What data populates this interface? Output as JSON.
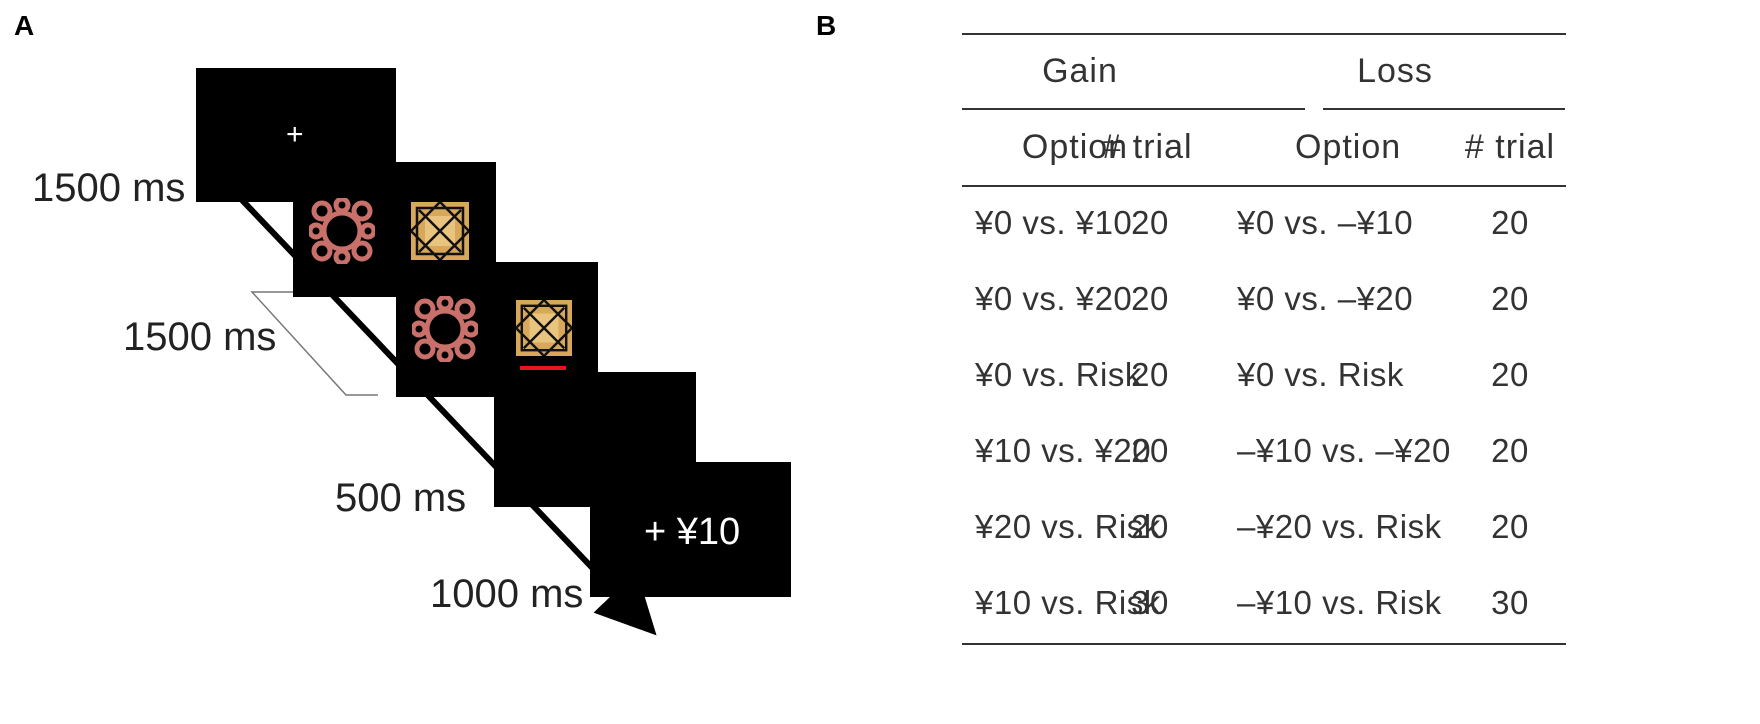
{
  "panel_a": {
    "label": "A",
    "timings": [
      "1500 ms",
      "1500 ms",
      "500 ms",
      "1000 ms"
    ],
    "fixation": "+",
    "feedback": "+ ¥10",
    "colors": {
      "screen": "#000000",
      "choice_marker": "#e8141c",
      "stim_left": "#c9706a",
      "stim_right": "#d8a85a"
    }
  },
  "panel_b": {
    "label": "B",
    "groups": [
      "Gain",
      "Loss"
    ],
    "columns": [
      "Option",
      "# trial",
      "Option",
      "# trial"
    ],
    "rows": [
      [
        "¥0 vs. ¥10",
        "20",
        "¥0 vs. –¥10",
        "20"
      ],
      [
        "¥0 vs. ¥20",
        "20",
        "¥0 vs. –¥20",
        "20"
      ],
      [
        "¥0 vs. Risk",
        "20",
        "¥0 vs. Risk",
        "20"
      ],
      [
        "¥10 vs. ¥20",
        "20",
        "–¥10 vs. –¥20",
        "20"
      ],
      [
        "¥20 vs. Risk",
        "20",
        "–¥20 vs. Risk",
        "20"
      ],
      [
        "¥10 vs. Risk",
        "30",
        "–¥10 vs. Risk",
        "30"
      ]
    ]
  }
}
